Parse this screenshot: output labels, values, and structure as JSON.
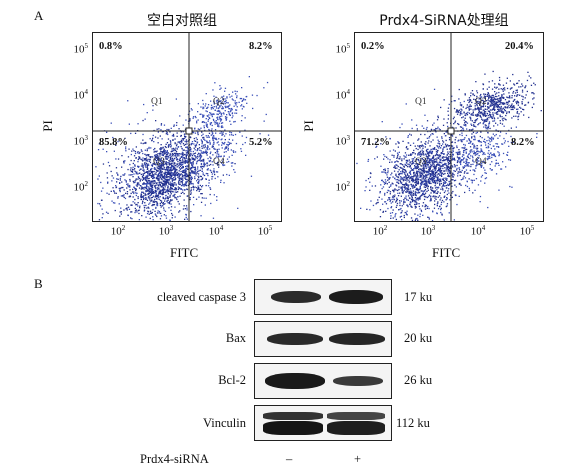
{
  "panel_a": {
    "letter": "A",
    "plots": [
      {
        "title": "空白对照组",
        "quadrants": {
          "ul": "0.8%",
          "ur": "8.2%",
          "ll": "85.8%",
          "lr": "5.2%"
        },
        "quad_names": {
          "q1": "Q1",
          "q2": "Q2",
          "q3": "Q3",
          "q4": "Q4"
        }
      },
      {
        "title": "Prdx4-SiRNA处理组",
        "quadrants": {
          "ul": "0.2%",
          "ur": "20.4%",
          "ll": "71.2%",
          "lr": "8.2%"
        },
        "quad_names": {
          "q1": "Q1",
          "q2": "Q2",
          "q3": "Q3",
          "q4": "Q4"
        }
      }
    ],
    "xlabel": "FITC",
    "ylabel": "PI",
    "tick_base": "10",
    "x_ticks": [
      "2",
      "3",
      "4",
      "5"
    ],
    "y_ticks": [
      "5",
      "4",
      "3",
      "2"
    ]
  },
  "panel_b": {
    "letter": "B",
    "rows": [
      {
        "label": "cleaved caspase 3",
        "size": "17 ku"
      },
      {
        "label": "Bax",
        "size": "20 ku"
      },
      {
        "label": "Bcl-2",
        "size": "26 ku"
      },
      {
        "label": "Vinculin",
        "size": "112 ku"
      }
    ],
    "treatment": {
      "label": "Prdx4-siRNA",
      "minus": "–",
      "plus": "+"
    }
  },
  "colors": {
    "dots": "#3a4fb8",
    "dots_dense": "#22308f"
  }
}
